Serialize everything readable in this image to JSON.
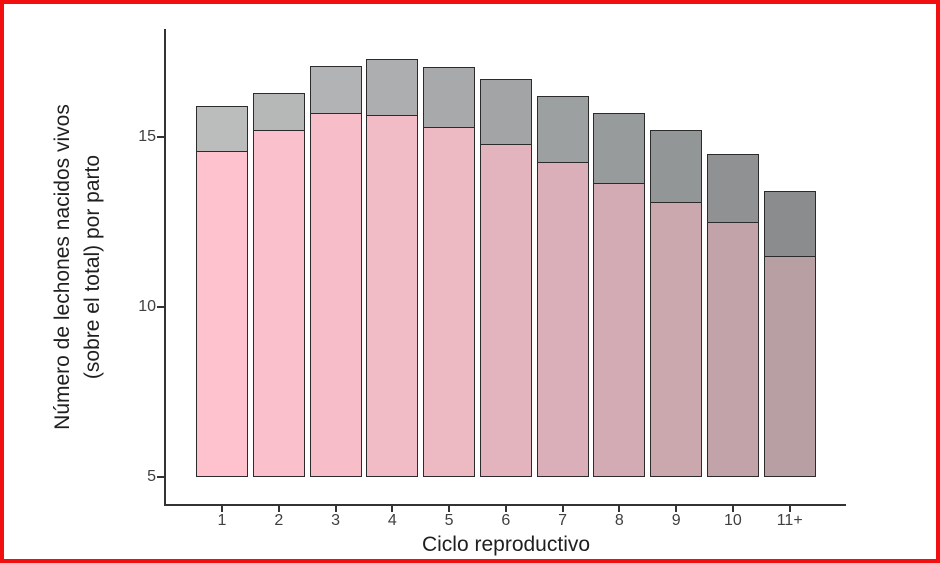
{
  "frame": {
    "border_color": "#f10f0f",
    "background_color": "#ffffff"
  },
  "colors": {
    "axis": "#333333",
    "bar_border": "#2b2b2b",
    "tick_text": "#404040",
    "title_text": "#1f1f1f"
  },
  "chart_data": {
    "type": "bar",
    "stacked": true,
    "title": "",
    "xlabel": "Ciclo reproductivo",
    "ylabel": [
      "Número de lechones nacidos vivos",
      "(sobre el total) por parto"
    ],
    "categories": [
      "1",
      "2",
      "3",
      "4",
      "5",
      "6",
      "7",
      "8",
      "9",
      "10",
      "11+"
    ],
    "series": [
      {
        "name": "pink-bottom-segment",
        "values": [
          14.6,
          15.2,
          15.7,
          15.65,
          15.3,
          14.8,
          14.25,
          13.65,
          13.1,
          12.5,
          11.5
        ],
        "colors": [
          "#FDC2CD",
          "#FAC0CB",
          "#F7BEC9",
          "#F2BCC6",
          "#EDB9C3",
          "#E4B4BE",
          "#DBAFB9",
          "#D3ABB4",
          "#CBA7AE",
          "#C2A3A9",
          "#B89FA4"
        ]
      },
      {
        "name": "gray-top-segment-cumulative-total",
        "values": [
          15.9,
          16.3,
          17.1,
          17.3,
          17.05,
          16.7,
          16.2,
          15.7,
          15.2,
          14.5,
          13.4
        ],
        "colors": [
          "#BBBDBD",
          "#B6B8B8",
          "#B1B3B4",
          "#ACAEAF",
          "#A7A9AA",
          "#A2A4A5",
          "#9DA0A1",
          "#989B9C",
          "#939697",
          "#8F9192",
          "#8A8C8D"
        ]
      }
    ],
    "yticks": [
      5,
      10,
      15
    ],
    "ylim": [
      5,
      18.2
    ],
    "bar_baseline": 5,
    "grid": false,
    "legend": "none"
  }
}
